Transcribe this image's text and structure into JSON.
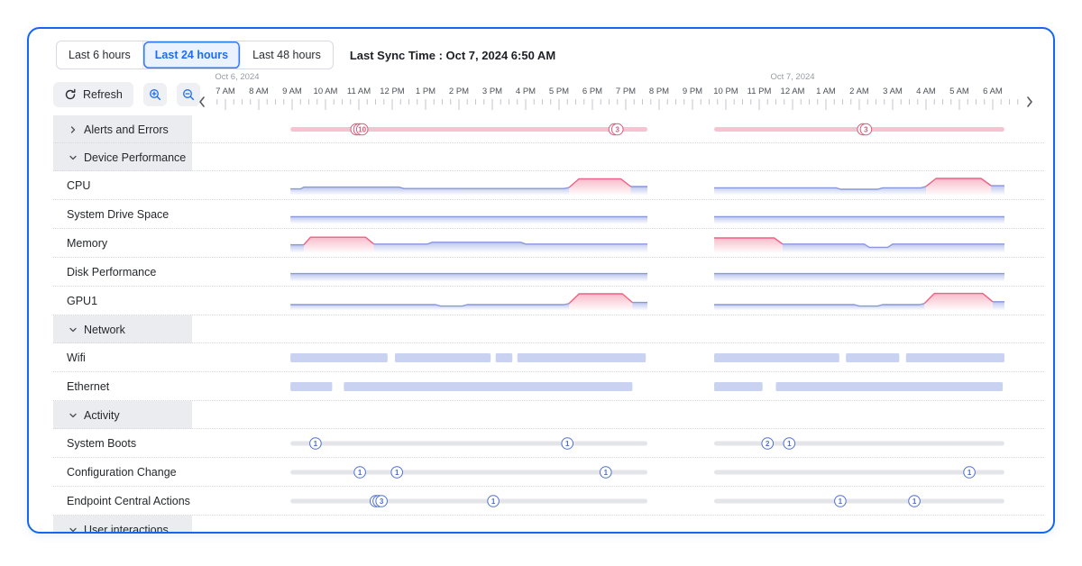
{
  "controls": {
    "range_buttons": [
      {
        "label": "Last 6 hours",
        "selected": false
      },
      {
        "label": "Last 24 hours",
        "selected": true
      },
      {
        "label": "Last 48 hours",
        "selected": false
      }
    ],
    "last_sync": "Last Sync Time : Oct 7, 2024 6:50 AM",
    "refresh_label": "Refresh"
  },
  "colors": {
    "accent_blue": "#1a6ef5",
    "card_border": "#1567f2",
    "selected_range_bg": "#eaf2ff",
    "area_line_blue": "#8897de",
    "area_line_red": "#ee6184",
    "network_bar": "#c9d2f1",
    "alert_line": "#f6c3d0",
    "alert_badge": "#e0557a",
    "event_line": "#e4e5e9",
    "event_badge": "#4d6fd6",
    "category_bg": "#ebecef"
  },
  "timeline": {
    "dates": [
      {
        "label": "Oct 6, 2024",
        "hour": 0.35
      },
      {
        "label": "Oct 7, 2024",
        "hour": 17
      }
    ],
    "hours": [
      "7 AM",
      "8 AM",
      "9 AM",
      "10 AM",
      "11 AM",
      "12 PM",
      "1 PM",
      "2 PM",
      "3 PM",
      "4 PM",
      "5 PM",
      "6 PM",
      "7 PM",
      "8 PM",
      "9 PM",
      "10 PM",
      "11 PM",
      "12 AM",
      "1 AM",
      "2 AM",
      "3 AM",
      "4 AM",
      "5 AM",
      "6 AM"
    ]
  },
  "rows": [
    {
      "kind": "category",
      "label": "Alerts and Errors",
      "expanded": false,
      "chart": {
        "type": "eventline",
        "line_color": "#f6c3d0",
        "badge_color": "#e0557a",
        "segments": [
          [
            1.95,
            12.65
          ],
          [
            14.65,
            23.35
          ]
        ],
        "badges": [
          {
            "h": 4.1,
            "count": "10",
            "stack": 3
          },
          {
            "h": 11.75,
            "count": "3",
            "stack": 2
          },
          {
            "h": 19.2,
            "count": "3",
            "stack": 2
          }
        ]
      }
    },
    {
      "kind": "category",
      "label": "Device Performance",
      "expanded": true
    },
    {
      "kind": "item",
      "label": "CPU",
      "chart": {
        "type": "area",
        "segments": [
          {
            "parts": [
              {
                "color": "blue",
                "pts": [
                  [
                    1.95,
                    0.32
                  ],
                  [
                    2.25,
                    0.32
                  ],
                  [
                    2.35,
                    0.42
                  ],
                  [
                    5.2,
                    0.42
                  ],
                  [
                    5.35,
                    0.34
                  ],
                  [
                    10.15,
                    0.34
                  ],
                  [
                    10.3,
                    0.4
                  ]
                ]
              },
              {
                "color": "red",
                "pts": [
                  [
                    10.3,
                    0.4
                  ],
                  [
                    10.6,
                    0.88
                  ],
                  [
                    11.85,
                    0.88
                  ],
                  [
                    12.15,
                    0.45
                  ]
                ]
              },
              {
                "color": "blue",
                "pts": [
                  [
                    12.15,
                    0.45
                  ],
                  [
                    12.65,
                    0.45
                  ]
                ]
              }
            ]
          },
          {
            "parts": [
              {
                "color": "blue",
                "pts": [
                  [
                    14.65,
                    0.38
                  ],
                  [
                    18.3,
                    0.38
                  ],
                  [
                    18.45,
                    0.3
                  ],
                  [
                    19.55,
                    0.3
                  ],
                  [
                    19.7,
                    0.38
                  ],
                  [
                    20.85,
                    0.38
                  ],
                  [
                    21.0,
                    0.46
                  ]
                ]
              },
              {
                "color": "red",
                "pts": [
                  [
                    21.0,
                    0.46
                  ],
                  [
                    21.3,
                    0.9
                  ],
                  [
                    22.65,
                    0.9
                  ],
                  [
                    22.95,
                    0.5
                  ]
                ]
              },
              {
                "color": "blue",
                "pts": [
                  [
                    22.95,
                    0.5
                  ],
                  [
                    23.35,
                    0.5
                  ]
                ]
              }
            ]
          }
        ]
      }
    },
    {
      "kind": "item",
      "label": "System Drive Space",
      "chart": {
        "type": "area",
        "segments": [
          {
            "parts": [
              {
                "color": "blue",
                "pts": [
                  [
                    1.95,
                    0.38
                  ],
                  [
                    12.65,
                    0.38
                  ]
                ]
              }
            ]
          },
          {
            "parts": [
              {
                "color": "blue",
                "pts": [
                  [
                    14.65,
                    0.38
                  ],
                  [
                    23.35,
                    0.38
                  ]
                ]
              }
            ]
          }
        ]
      }
    },
    {
      "kind": "item",
      "label": "Memory",
      "chart": {
        "type": "area",
        "segments": [
          {
            "parts": [
              {
                "color": "blue",
                "pts": [
                  [
                    1.95,
                    0.42
                  ],
                  [
                    2.35,
                    0.42
                  ]
                ]
              },
              {
                "color": "red",
                "pts": [
                  [
                    2.35,
                    0.42
                  ],
                  [
                    2.55,
                    0.84
                  ],
                  [
                    4.2,
                    0.84
                  ],
                  [
                    4.45,
                    0.46
                  ]
                ]
              },
              {
                "color": "blue",
                "pts": [
                  [
                    4.45,
                    0.46
                  ],
                  [
                    6.05,
                    0.46
                  ],
                  [
                    6.2,
                    0.56
                  ],
                  [
                    8.85,
                    0.56
                  ],
                  [
                    9.0,
                    0.46
                  ],
                  [
                    12.65,
                    0.46
                  ]
                ]
              }
            ]
          },
          {
            "parts": [
              {
                "color": "red",
                "pts": [
                  [
                    14.65,
                    0.8
                  ],
                  [
                    16.45,
                    0.8
                  ],
                  [
                    16.7,
                    0.46
                  ]
                ]
              },
              {
                "color": "blue",
                "pts": [
                  [
                    16.7,
                    0.46
                  ],
                  [
                    19.15,
                    0.46
                  ],
                  [
                    19.3,
                    0.28
                  ],
                  [
                    19.85,
                    0.28
                  ],
                  [
                    20.0,
                    0.46
                  ],
                  [
                    23.35,
                    0.46
                  ]
                ]
              }
            ]
          }
        ]
      }
    },
    {
      "kind": "item",
      "label": "Disk Performance",
      "chart": {
        "type": "area",
        "segments": [
          {
            "parts": [
              {
                "color": "blue",
                "pts": [
                  [
                    1.95,
                    0.42
                  ],
                  [
                    12.65,
                    0.42
                  ]
                ]
              }
            ]
          },
          {
            "parts": [
              {
                "color": "blue",
                "pts": [
                  [
                    14.65,
                    0.42
                  ],
                  [
                    23.35,
                    0.42
                  ]
                ]
              }
            ]
          }
        ]
      }
    },
    {
      "kind": "item",
      "label": "GPU1",
      "chart": {
        "type": "area",
        "segments": [
          {
            "parts": [
              {
                "color": "blue",
                "pts": [
                  [
                    1.95,
                    0.3
                  ],
                  [
                    6.3,
                    0.3
                  ],
                  [
                    6.45,
                    0.22
                  ],
                  [
                    7.1,
                    0.22
                  ],
                  [
                    7.25,
                    0.3
                  ],
                  [
                    10.15,
                    0.3
                  ],
                  [
                    10.3,
                    0.36
                  ]
                ]
              },
              {
                "color": "red",
                "pts": [
                  [
                    10.3,
                    0.36
                  ],
                  [
                    10.6,
                    0.9
                  ],
                  [
                    11.9,
                    0.9
                  ],
                  [
                    12.2,
                    0.42
                  ]
                ]
              },
              {
                "color": "blue",
                "pts": [
                  [
                    12.2,
                    0.42
                  ],
                  [
                    12.65,
                    0.42
                  ]
                ]
              }
            ]
          },
          {
            "parts": [
              {
                "color": "blue",
                "pts": [
                  [
                    14.65,
                    0.3
                  ],
                  [
                    18.85,
                    0.3
                  ],
                  [
                    19.0,
                    0.22
                  ],
                  [
                    19.55,
                    0.22
                  ],
                  [
                    19.7,
                    0.3
                  ],
                  [
                    20.8,
                    0.3
                  ],
                  [
                    20.95,
                    0.36
                  ]
                ]
              },
              {
                "color": "red",
                "pts": [
                  [
                    20.95,
                    0.36
                  ],
                  [
                    21.25,
                    0.92
                  ],
                  [
                    22.7,
                    0.92
                  ],
                  [
                    23.0,
                    0.46
                  ]
                ]
              },
              {
                "color": "blue",
                "pts": [
                  [
                    23.0,
                    0.46
                  ],
                  [
                    23.35,
                    0.46
                  ]
                ]
              }
            ]
          }
        ]
      }
    },
    {
      "kind": "category",
      "label": "Network",
      "expanded": true
    },
    {
      "kind": "item",
      "label": "Wifi",
      "chart": {
        "type": "bars",
        "color": "#c9d2f1",
        "bars": [
          [
            1.95,
            4.86
          ],
          [
            5.08,
            7.95
          ],
          [
            8.1,
            8.6
          ],
          [
            8.75,
            12.6
          ],
          [
            14.65,
            18.4
          ],
          [
            18.6,
            20.2
          ],
          [
            20.4,
            23.35
          ]
        ]
      }
    },
    {
      "kind": "item",
      "label": "Ethernet",
      "chart": {
        "type": "bars",
        "color": "#c9d2f1",
        "bars": [
          [
            1.95,
            3.2
          ],
          [
            3.55,
            12.2
          ],
          [
            14.65,
            16.1
          ],
          [
            16.5,
            23.3
          ]
        ]
      }
    },
    {
      "kind": "category",
      "label": "Activity",
      "expanded": true
    },
    {
      "kind": "item",
      "label": "System Boots",
      "chart": {
        "type": "eventline",
        "line_color": "#e4e5e9",
        "badge_color": "#4d6fd6",
        "segments": [
          [
            1.95,
            12.65
          ],
          [
            14.65,
            23.35
          ]
        ],
        "badges": [
          {
            "h": 2.7,
            "count": "1",
            "stack": 1
          },
          {
            "h": 10.25,
            "count": "1",
            "stack": 1
          },
          {
            "h": 16.25,
            "count": "2",
            "stack": 1
          },
          {
            "h": 16.9,
            "count": "1",
            "stack": 1
          }
        ]
      }
    },
    {
      "kind": "item",
      "label": "Configuration Change",
      "chart": {
        "type": "eventline",
        "line_color": "#e4e5e9",
        "badge_color": "#4d6fd6",
        "segments": [
          [
            1.95,
            12.65
          ],
          [
            14.65,
            23.35
          ]
        ],
        "badges": [
          {
            "h": 4.03,
            "count": "1",
            "stack": 1
          },
          {
            "h": 5.14,
            "count": "1",
            "stack": 1
          },
          {
            "h": 11.4,
            "count": "1",
            "stack": 1
          },
          {
            "h": 22.3,
            "count": "1",
            "stack": 1
          }
        ]
      }
    },
    {
      "kind": "item",
      "label": "Endpoint Central Actions",
      "chart": {
        "type": "eventline",
        "line_color": "#e4e5e9",
        "badge_color": "#4d6fd6",
        "segments": [
          [
            1.95,
            12.65
          ],
          [
            14.65,
            23.35
          ]
        ],
        "badges": [
          {
            "h": 4.68,
            "count": "3",
            "stack": 3
          },
          {
            "h": 8.03,
            "count": "1",
            "stack": 1
          },
          {
            "h": 18.43,
            "count": "1",
            "stack": 1
          },
          {
            "h": 20.65,
            "count": "1",
            "stack": 1
          }
        ]
      }
    },
    {
      "kind": "category",
      "label": "User interactions",
      "expanded": true
    }
  ]
}
